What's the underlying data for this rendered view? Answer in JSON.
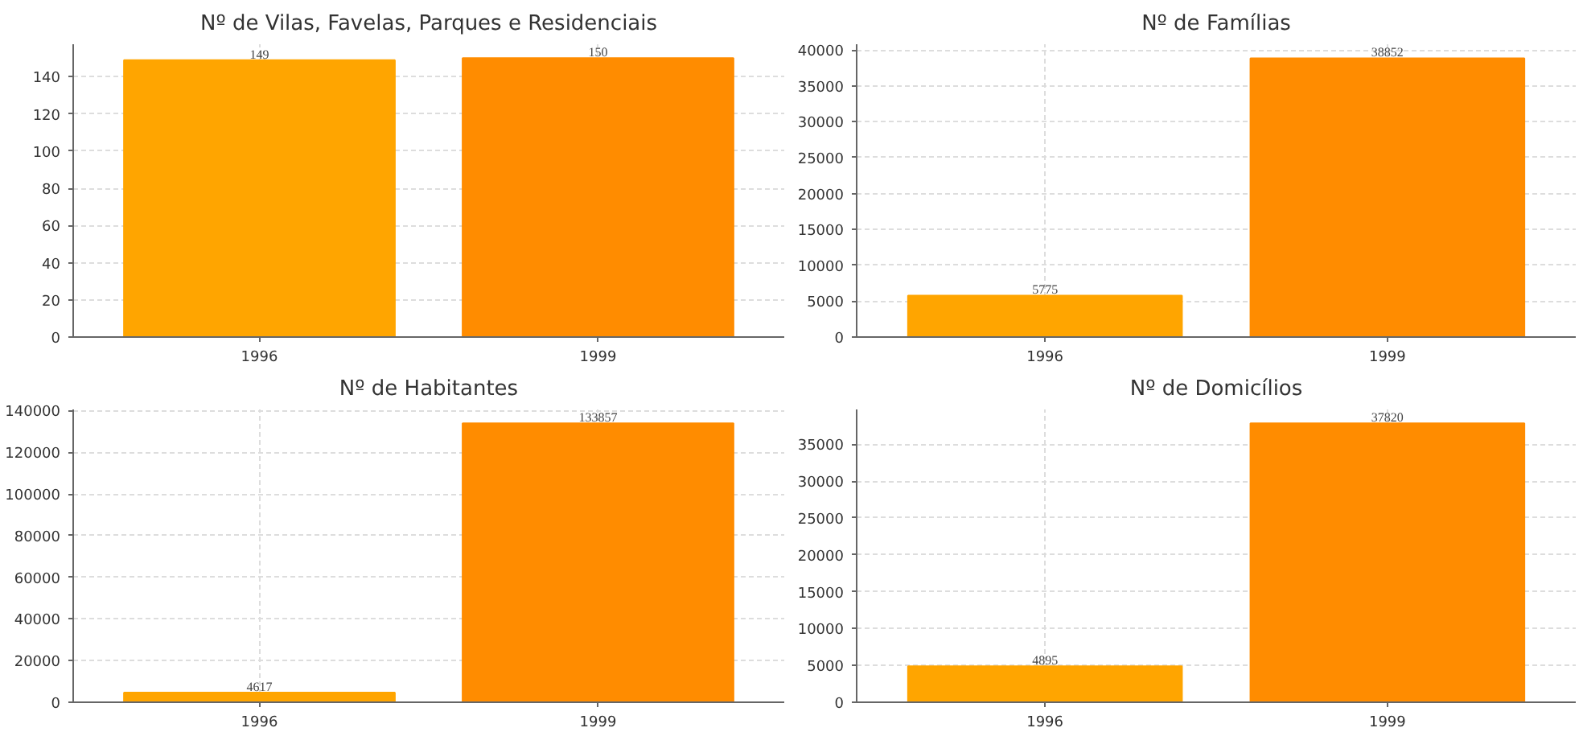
{
  "chart_data": [
    {
      "type": "bar",
      "title": "Nº de Vilas, Favelas, Parques e Residenciais",
      "categories": [
        "1996",
        "1999"
      ],
      "values": [
        149,
        150
      ],
      "colors": [
        "#ffa500",
        "#ff8c00"
      ],
      "ylim": [
        0,
        157.5
      ],
      "yticks": [
        0,
        20,
        40,
        60,
        80,
        100,
        120,
        140
      ],
      "grid": true,
      "data_labels": true
    },
    {
      "type": "bar",
      "title": "Nº de Famílias",
      "categories": [
        "1996",
        "1999"
      ],
      "values": [
        5775,
        38852
      ],
      "colors": [
        "#ffa500",
        "#ff8c00"
      ],
      "ylim": [
        0,
        40800
      ],
      "yticks": [
        0,
        5000,
        10000,
        15000,
        20000,
        25000,
        30000,
        35000,
        40000
      ],
      "grid": true,
      "data_labels": true
    },
    {
      "type": "bar",
      "title": "Nº de Habitantes",
      "categories": [
        "1996",
        "1999"
      ],
      "values": [
        4617,
        133857
      ],
      "colors": [
        "#ffa500",
        "#ff8c00"
      ],
      "ylim": [
        0,
        140550
      ],
      "yticks": [
        0,
        20000,
        40000,
        60000,
        80000,
        100000,
        120000,
        140000
      ],
      "grid": true,
      "data_labels": true
    },
    {
      "type": "bar",
      "title": "Nº de Domicílios",
      "categories": [
        "1996",
        "1999"
      ],
      "values": [
        4895,
        37820
      ],
      "colors": [
        "#ffa500",
        "#ff8c00"
      ],
      "ylim": [
        0,
        39711
      ],
      "yticks": [
        0,
        5000,
        10000,
        15000,
        20000,
        25000,
        30000,
        35000
      ],
      "grid": true,
      "data_labels": true
    }
  ]
}
